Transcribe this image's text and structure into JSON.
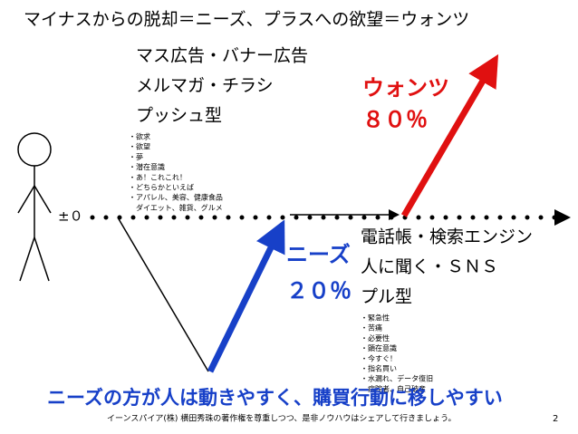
{
  "title": "マイナスからの脱却＝ニーズ、プラスへの欲望＝ウォンツ",
  "wants": {
    "lines": [
      "マス広告・バナー広告",
      "メルマガ・チラシ",
      "プッシュ型"
    ],
    "label": "ウォンツ",
    "percent": "８０％",
    "notes": [
      "・欲求",
      "・欲望",
      "・夢",
      "・潜在意識",
      "・あ！これこれ！",
      "・どちらかといえば",
      "・アパレル、美容、健康食品",
      "　ダイエット、雑貨、グルメ"
    ]
  },
  "zero": "±０",
  "needs": {
    "lines": [
      "電話帳・検索エンジン",
      "人に聞く・ＳＮＳ",
      "プル型"
    ],
    "label": "ニーズ",
    "percent": "２０％",
    "notes": [
      "・緊急性",
      "・苦痛",
      "・必要性",
      "・顕在意識",
      "・今すぐ！",
      "・指名買い",
      "・水漏れ、データ復旧",
      "　病院者、自己破産"
    ]
  },
  "conclusion": "ニーズの方が人は動きやすく、購買行動に移しやすい",
  "footer": "イーンスパイア(株) 横田秀珠の著作権を尊重しつつ、是非ノウハウはシェアして行きましょう。",
  "page_number": "2"
}
